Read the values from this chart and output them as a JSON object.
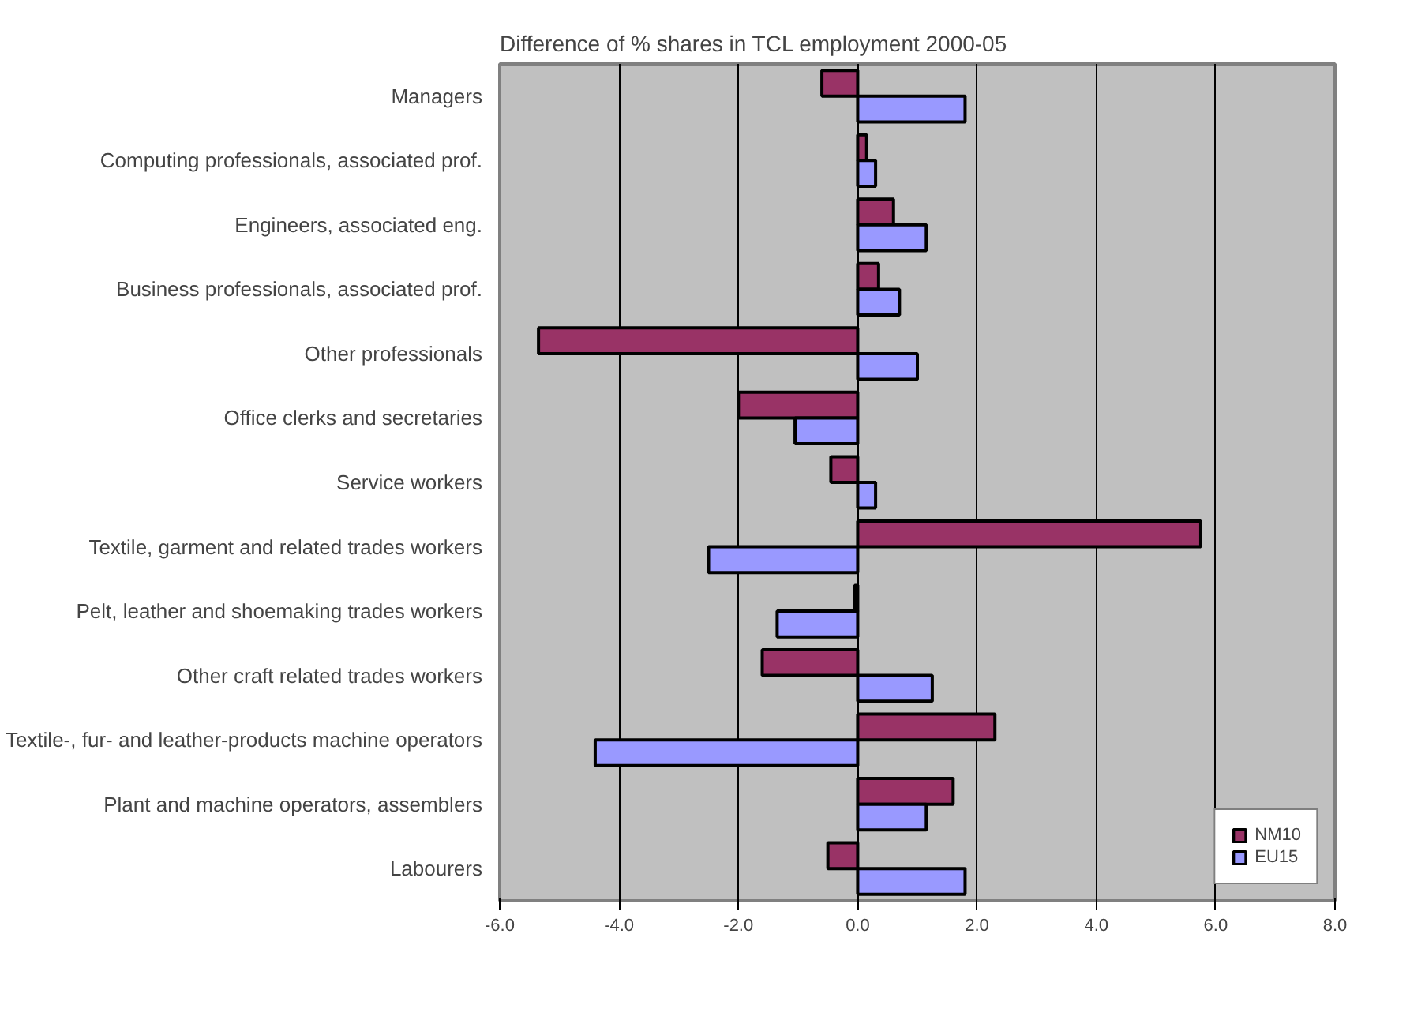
{
  "chart_data": {
    "type": "bar",
    "orientation": "horizontal",
    "title": "Difference of % shares in TCL employment 2000-05",
    "categories": [
      "Managers",
      "Computing professionals, associated prof.",
      "Engineers, associated eng.",
      "Business professionals, associated prof.",
      "Other professionals",
      "Office clerks and secretaries",
      "Service workers",
      "Textile, garment and related trades workers",
      "Pelt, leather and shoemaking trades workers",
      "Other craft related trades workers",
      "Textile-, fur- and leather-products machine operators",
      "Plant and machine operators, assemblers",
      "Labourers"
    ],
    "series": [
      {
        "name": "NM10",
        "color": "#993366",
        "values": [
          -0.6,
          0.15,
          0.6,
          0.35,
          -5.35,
          -2.0,
          -0.45,
          5.75,
          -0.05,
          -1.6,
          2.3,
          1.6,
          -0.5
        ]
      },
      {
        "name": "EU15",
        "color": "#9999ff",
        "values": [
          1.8,
          0.3,
          1.15,
          0.7,
          1.0,
          -1.05,
          0.3,
          -2.5,
          -1.35,
          1.25,
          -4.4,
          1.15,
          1.8
        ]
      }
    ],
    "xlim": [
      -6,
      8
    ],
    "xticks": [
      {
        "value": -6,
        "label": "-6.0"
      },
      {
        "value": -4,
        "label": "-4.0"
      },
      {
        "value": -2,
        "label": "-2.0"
      },
      {
        "value": 0,
        "label": "0.0"
      },
      {
        "value": 2,
        "label": "2.0"
      },
      {
        "value": 4,
        "label": "4.0"
      },
      {
        "value": 6,
        "label": "6.0"
      },
      {
        "value": 8,
        "label": "8.0"
      }
    ],
    "grid": "x",
    "legend": "bottom right"
  }
}
